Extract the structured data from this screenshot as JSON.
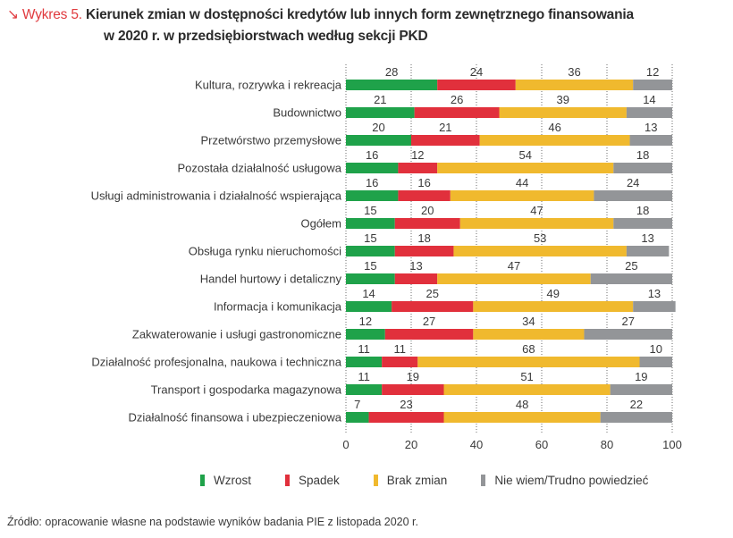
{
  "header": {
    "prefix_icon": "arrow-down-right-icon",
    "prefix_glyph": "↘",
    "prefix": "Wykres 5.",
    "title_line1": "Kierunek zmian w dostępności kredytów lub innych form zewnętrznego finansowania",
    "title_line2": "w 2020 r. w przedsiębiorstwach według sekcji PKD"
  },
  "chart_data": {
    "type": "bar",
    "orientation": "horizontal",
    "stacked": true,
    "title": "Kierunek zmian w dostępności kredytów lub innych form zewnętrznego finansowania w 2020 r. w przedsiębiorstwach według sekcji PKD",
    "xlabel": "",
    "ylabel": "",
    "xlim": [
      0,
      100
    ],
    "xticks": [
      0,
      20,
      40,
      60,
      80,
      100
    ],
    "grid": "vertical dotted",
    "legend_position": "bottom",
    "categories": [
      "Kultura, rozrywka i rekreacja",
      "Budownictwo",
      "Przetwórstwo przemysłowe",
      "Pozostała działalność usługowa",
      "Usługi administrowania i działalność wspierająca",
      "Ogółem",
      "Obsługa rynku nieruchomości",
      "Handel hurtowy i detaliczny",
      "Informacja i komunikacja",
      "Zakwaterowanie i usługi gastronomiczne",
      "Działalność profesjonalna, naukowa i techniczna",
      "Transport i gospodarka magazynowa",
      "Działalność finansowa i ubezpieczeniowa"
    ],
    "series": [
      {
        "name": "Wzrost",
        "color": "#1fa24a",
        "values": [
          28,
          21,
          20,
          16,
          16,
          15,
          15,
          15,
          14,
          12,
          11,
          11,
          7
        ]
      },
      {
        "name": "Spadek",
        "color": "#e1303c",
        "values": [
          24,
          26,
          21,
          12,
          16,
          20,
          18,
          13,
          25,
          27,
          11,
          19,
          23
        ]
      },
      {
        "name": "Brak zmian",
        "color": "#f0b92e",
        "values": [
          36,
          39,
          46,
          54,
          44,
          47,
          53,
          47,
          49,
          34,
          68,
          51,
          48
        ]
      },
      {
        "name": "Nie wiem/Trudno powiedzieć",
        "color": "#939598",
        "values": [
          12,
          14,
          13,
          18,
          24,
          18,
          13,
          25,
          13,
          27,
          10,
          19,
          22
        ]
      }
    ]
  },
  "source": "Źródło: opracowanie własne na podstawie wyników badania PIE z listopada 2020 r."
}
